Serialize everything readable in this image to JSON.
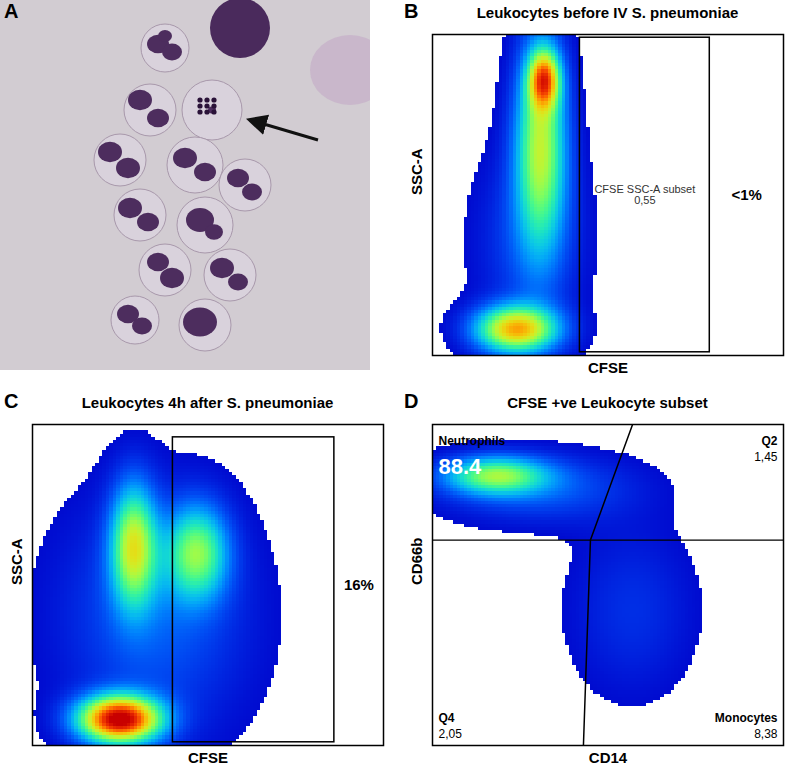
{
  "image_panel": {
    "label": "A"
  },
  "chart_data": [
    {
      "panel": "B",
      "type": "density",
      "title": "Leukocytes before IV S. pneumoniae",
      "x_label": "CFSE",
      "y_label": "SSC-A",
      "xlim": [
        0,
        100
      ],
      "ylim": [
        0,
        100
      ],
      "tick_labels": false,
      "populations": [
        {
          "x": 31,
          "y": 66,
          "sx": 5,
          "sy": 22,
          "density": 0.55
        },
        {
          "x": 32,
          "y": 86,
          "sx": 3,
          "sy": 6,
          "density": 0.6
        },
        {
          "x": 24,
          "y": 8,
          "sx": 8,
          "sy": 5,
          "density": 0.7
        },
        {
          "x": 28,
          "y": 35,
          "sx": 10,
          "sy": 20,
          "density": 0.12
        }
      ],
      "gates": [
        {
          "x1": 42,
          "x2": 79,
          "y1": 1,
          "y2": 99,
          "name": "CFSE SSC-A subset",
          "value": 0.55,
          "value_label": "0,55"
        }
      ],
      "gate_percent": {
        "label": "<1%"
      }
    },
    {
      "panel": "C",
      "type": "density",
      "title": "Leukocytes 4h after S. pneumoniae",
      "x_label": "CFSE",
      "y_label": "SSC-A",
      "xlim": [
        0,
        100
      ],
      "ylim": [
        0,
        100
      ],
      "tick_labels": false,
      "populations": [
        {
          "x": 29,
          "y": 62,
          "sx": 4.5,
          "sy": 13,
          "density": 0.55
        },
        {
          "x": 47,
          "y": 60,
          "sx": 6,
          "sy": 10,
          "density": 0.45
        },
        {
          "x": 25,
          "y": 8,
          "sx": 8,
          "sy": 5,
          "density": 1
        },
        {
          "x": 35,
          "y": 40,
          "sx": 18,
          "sy": 25,
          "density": 0.15
        }
      ],
      "gates": [
        {
          "x1": 40,
          "x2": 86,
          "y1": 1,
          "y2": 96
        }
      ],
      "gate_percent": {
        "value": 16,
        "label": "16%"
      }
    },
    {
      "panel": "D",
      "type": "density",
      "title": "CFSE +ve Leukocyte subset",
      "x_label": "CD14",
      "y_label": "CD66b",
      "xlim": [
        0,
        100
      ],
      "ylim": [
        0,
        100
      ],
      "tick_labels": false,
      "populations": [
        {
          "x": 18,
          "y": 84,
          "sx": 10,
          "sy": 4,
          "density": 0.45
        },
        {
          "x": 30,
          "y": 80,
          "sx": 18,
          "sy": 7,
          "density": 0.15
        },
        {
          "x": 57,
          "y": 42,
          "sx": 12,
          "sy": 18,
          "density": 0.08
        }
      ],
      "quadrant_lines": {
        "horizontal": 64,
        "vertical": [
          [
            57,
            100
          ],
          [
            45,
            64
          ],
          [
            43,
            0
          ]
        ]
      },
      "quadrants": [
        {
          "name": "Neutrophils",
          "value": 88.4
        },
        {
          "name": "Q2",
          "value": 1.45,
          "value_label": "1,45"
        },
        {
          "name": "Q4",
          "value": 2.05,
          "value_label": "2,05"
        },
        {
          "name": "Monocytes",
          "value": 8.38,
          "value_label": "8,38"
        }
      ]
    }
  ]
}
